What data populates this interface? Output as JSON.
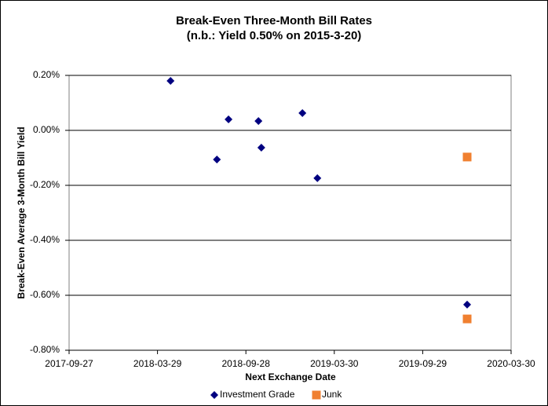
{
  "chart_data": {
    "type": "scatter",
    "title": "Break-Even Three-Month Bill Rates",
    "subtitle": "(n.b.: Yield 0.50% on 2015-3-20)",
    "x_label": "Next Exchange Date",
    "y_label": "Break-Even Average 3-Month Bill Yield",
    "xlim": [
      "2017-09-27",
      "2020-03-30"
    ],
    "xticks": [
      "2017-09-27",
      "2018-03-29",
      "2018-09-28",
      "2019-03-30",
      "2019-09-29",
      "2020-03-30"
    ],
    "ylim": [
      -0.8,
      0.2
    ],
    "yticks": [
      {
        "value": -0.8,
        "label": "-0.80%"
      },
      {
        "value": -0.6,
        "label": "-0.60%"
      },
      {
        "value": -0.4,
        "label": "-0.40%"
      },
      {
        "value": -0.2,
        "label": "-0.20%"
      },
      {
        "value": 0,
        "label": "0.00%"
      },
      {
        "value": 0.2,
        "label": "0.20%"
      }
    ],
    "grid": true,
    "legend": "bottom",
    "series": [
      {
        "name": "Investment Grade",
        "color": "#000080",
        "marker": "diamond",
        "x": [
          "2018-04-25",
          "2018-07-30",
          "2018-08-23",
          "2018-10-24",
          "2018-10-30",
          "2019-01-23",
          "2019-02-23",
          "2019-12-30"
        ],
        "values": [
          0.18,
          -0.106,
          0.04,
          0.034,
          -0.063,
          0.063,
          -0.174,
          -0.634
        ]
      },
      {
        "name": "Junk",
        "color": "#f08030",
        "marker": "square",
        "x": [
          "2019-12-30",
          "2019-12-30"
        ],
        "values": [
          -0.097,
          -0.686
        ]
      }
    ]
  }
}
